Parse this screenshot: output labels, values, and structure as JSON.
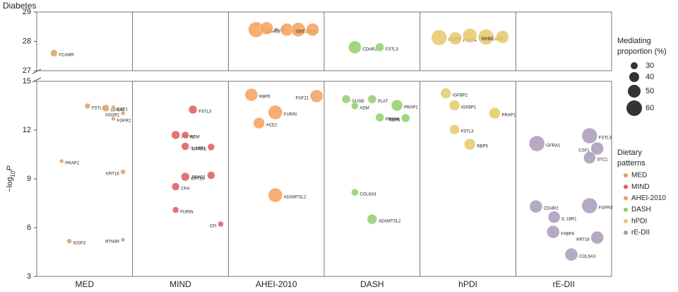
{
  "chart_data": {
    "type": "bubble",
    "diabetes_label": "Diabetes",
    "diabetes_ylim": [
      27,
      29
    ],
    "diabetes_yticks": [
      27,
      28,
      29
    ],
    "ylabel": [
      "−log",
      "10",
      "P"
    ],
    "ylim": [
      3,
      15
    ],
    "yticks": [
      3,
      6,
      9,
      12,
      15
    ],
    "xlim": [
      0,
      6
    ],
    "categories": [
      "MED",
      "MIND",
      "AHEI-2010",
      "DASH",
      "hPDI",
      "rE-DII"
    ],
    "size_legend": {
      "title": [
        "Mediating",
        "proportion (%)"
      ],
      "values": [
        30,
        40,
        50,
        60
      ]
    },
    "legend_title": [
      "Dietary",
      "patterns"
    ],
    "series": [
      {
        "name": "MED",
        "color": "#d9a066",
        "labels": [
          "FSTL3",
          "GFRA1",
          "CSF1",
          "ASGR1",
          "FGFR2",
          "PRAP1",
          "KRT18",
          "IGSF3",
          "RTN4R"
        ],
        "x": [
          0.53,
          0.72,
          0.8,
          0.9,
          0.8,
          0.26,
          0.9,
          0.34,
          0.9
        ],
        "values": [
          13.48,
          13.35,
          13.4,
          13.04,
          12.7,
          10.09,
          9.43,
          5.17,
          5.26
        ],
        "sizes": [
          25,
          30,
          20,
          20,
          20,
          20,
          22.5,
          22.5,
          20
        ],
        "diabetes": {
          "labels": [
            "FCAMR"
          ],
          "x": [
            0.18
          ],
          "values": [
            27.6
          ],
          "sizes": [
            30
          ]
        }
      },
      {
        "name": "MIND",
        "color": "#e05a5a",
        "labels": [
          "FSTL3",
          "FGFR2",
          "ADM",
          "IL-18R1",
          "GFRA1",
          "KRT18",
          "PRAP1",
          "CFH",
          "FURIN",
          "CFI"
        ],
        "x": [
          1.63,
          1.45,
          1.55,
          1.55,
          1.82,
          1.55,
          1.82,
          1.45,
          1.45,
          1.92
        ],
        "values": [
          13.26,
          11.7,
          11.7,
          11.0,
          10.96,
          9.13,
          9.22,
          8.52,
          7.09,
          6.22
        ],
        "sizes": [
          35,
          35,
          30,
          32.5,
          30,
          35,
          32.5,
          32.5,
          27.5,
          25
        ]
      },
      {
        "name": "AHEI-2010",
        "color": "#f5a05a",
        "labels": [
          "RBP5",
          "FGF21",
          "FURIN",
          "ACE2",
          "ADAMTSL2"
        ],
        "x": [
          2.24,
          2.92,
          2.49,
          2.32,
          2.49
        ],
        "values": [
          14.17,
          14.09,
          13.09,
          12.43,
          8.0
        ],
        "sizes": [
          50,
          50,
          55,
          45,
          55
        ],
        "diabetes": {
          "labels": [
            "CDHR2",
            "PLAT",
            "FSTL3",
            "CES1",
            "OXT"
          ],
          "x": [
            2.29,
            2.4,
            2.61,
            2.73,
            2.88
          ],
          "values": [
            28.4,
            28.45,
            28.4,
            28.4,
            28.4
          ],
          "sizes": [
            60,
            50,
            50,
            55,
            50
          ]
        }
      },
      {
        "name": "DASH",
        "color": "#8fcf6a",
        "labels": [
          "GUSB",
          "PLAT",
          "ADM",
          "PRAP1",
          "PRSS8",
          "RBP5",
          "COL6A3",
          "ADAMTSL2"
        ],
        "x": [
          3.23,
          3.5,
          3.32,
          3.76,
          3.58,
          3.85,
          3.32,
          3.5
        ],
        "values": [
          13.9,
          13.9,
          13.48,
          13.52,
          12.78,
          12.74,
          8.17,
          6.52
        ],
        "sizes": [
          35,
          35,
          30,
          45,
          35,
          35,
          30,
          40
        ],
        "diabetes": {
          "labels": [
            "CDHR2",
            "FSTL3"
          ],
          "x": [
            3.32,
            3.58
          ],
          "values": [
            27.8,
            27.8
          ],
          "sizes": [
            50,
            35
          ]
        }
      },
      {
        "name": "hPDI",
        "color": "#e6c96a",
        "labels": [
          "IGFBP2",
          "IGFBP1",
          "PRAP1",
          "FSTL3",
          "RBP5"
        ],
        "x": [
          4.27,
          4.36,
          4.78,
          4.36,
          4.52
        ],
        "values": [
          14.26,
          13.52,
          13.04,
          12.04,
          11.13
        ],
        "sizes": [
          42.5,
          42.5,
          45,
          40,
          45
        ],
        "diabetes": {
          "labels": [
            "IGSF9",
            "FABP4",
            "CDHR2",
            "LEP",
            "INHBC"
          ],
          "x": [
            4.2,
            4.37,
            4.52,
            4.69,
            4.86
          ],
          "values": [
            28.13,
            28.1,
            28.2,
            28.15,
            28.15
          ],
          "sizes": [
            60,
            50,
            55,
            60,
            50
          ]
        }
      },
      {
        "name": "rE-DII",
        "color": "#a89ab8",
        "labels": [
          "GFRA1",
          "FSTL3",
          "CSF1",
          "STC1",
          "CDHR2",
          "FGFR3",
          "IL-18R1",
          "FABP4",
          "KRT18",
          "COL6A3"
        ],
        "x": [
          5.22,
          5.77,
          5.85,
          5.77,
          5.21,
          5.77,
          5.4,
          5.39,
          5.85,
          5.58
        ],
        "values": [
          11.17,
          11.65,
          10.87,
          10.3,
          7.3,
          7.35,
          6.65,
          5.74,
          5.39,
          4.35
        ],
        "sizes": [
          60,
          60,
          50,
          47.5,
          50,
          60,
          47.5,
          50,
          50,
          50
        ]
      }
    ]
  }
}
